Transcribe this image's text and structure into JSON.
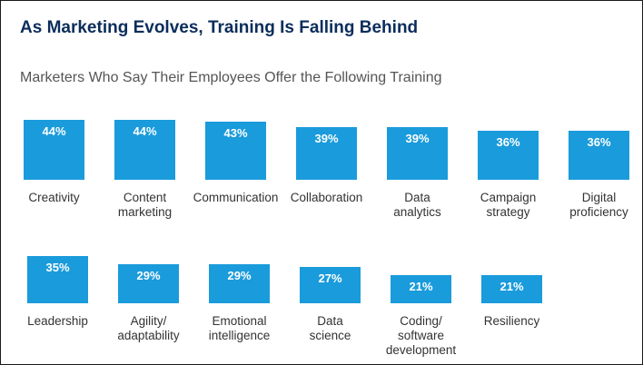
{
  "header": {
    "title": "As Marketing Evolves, Training Is Falling Behind",
    "subtitle": "Marketers Who Say Their Employees Offer the Following Training"
  },
  "colors": {
    "bar": "#1a9bdb",
    "title": "#0b2d5b",
    "label": "#333333"
  },
  "chart_data": [
    {
      "type": "bar",
      "title": "As Marketing Evolves, Training Is Falling Behind",
      "subtitle": "Marketers Who Say Their Employees Offer the Following Training",
      "unit": "%",
      "categories": [
        "Creativity",
        "Content\nmarketing",
        "Communication",
        "Collaboration",
        "Data\nanalytics",
        "Campaign\nstrategy",
        "Digital\nproficiency"
      ],
      "values": [
        44,
        44,
        43,
        39,
        39,
        36,
        36
      ],
      "value_labels": [
        "44%",
        "44%",
        "43%",
        "39%",
        "39%",
        "36%",
        "36%"
      ]
    },
    {
      "type": "bar",
      "unit": "%",
      "categories": [
        "Leadership",
        "Agility/\nadaptability",
        "Emotional\nintelligence",
        "Data\nscience",
        "Coding/\nsoftware\ndevelopment",
        "Resiliency"
      ],
      "values": [
        35,
        29,
        29,
        27,
        21,
        21
      ],
      "value_labels": [
        "35%",
        "29%",
        "29%",
        "27%",
        "21%",
        "21%"
      ]
    }
  ]
}
